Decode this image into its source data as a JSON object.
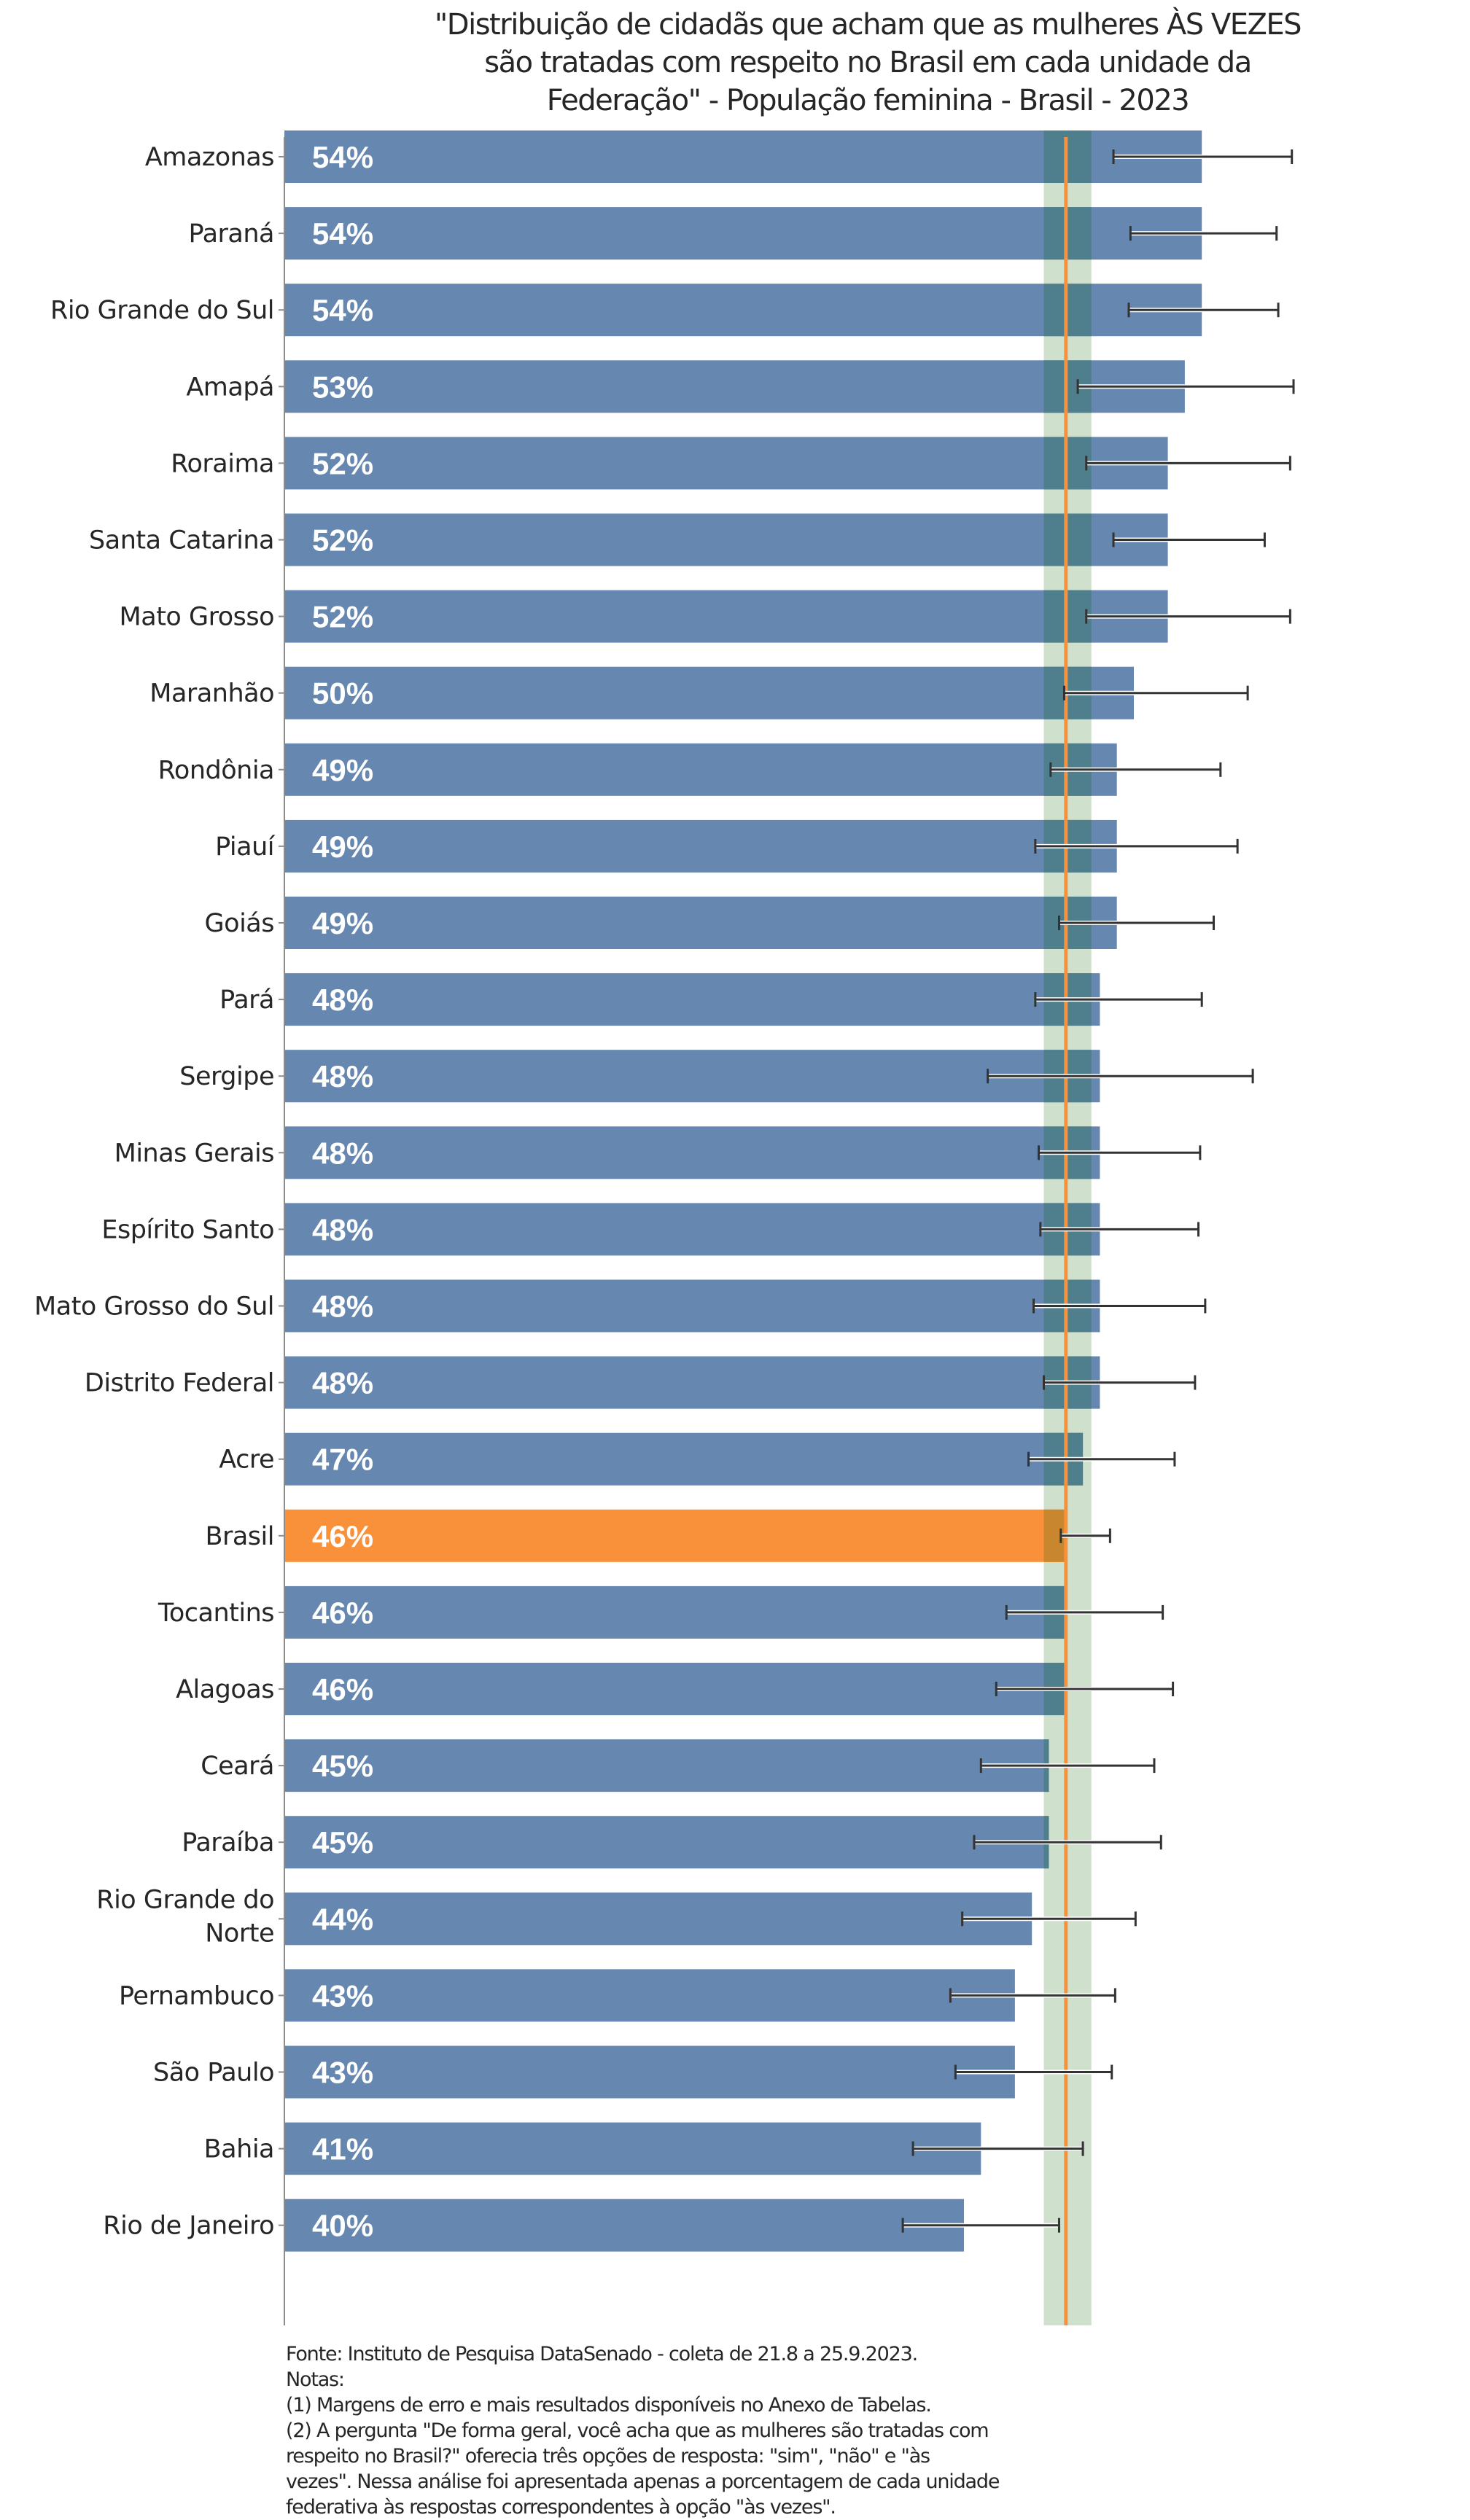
{
  "chart_data": {
    "type": "bar",
    "orientation": "horizontal",
    "title": "\"Distribuição de cidadãs que acham que as mulheres ÀS VEZES são tratadas com respeito no Brasil em cada unidade da Federação\" - População feminina - Brasil - 2023",
    "title_lines": [
      "\"Distribuição de cidadãs que acham que as mulheres ÀS VEZES",
      "são tratadas com respeito no Brasil em cada unidade da",
      "Federação\" - População feminina - Brasil - 2023"
    ],
    "xlabel": "",
    "ylabel": "",
    "xlim": [
      0,
      70
    ],
    "grid": false,
    "legend": "none",
    "unit": "%",
    "categories": [
      "Amazonas",
      "Paraná",
      "Rio Grande do Sul",
      "Amapá",
      "Roraima",
      "Santa Catarina",
      "Mato Grosso",
      "Maranhão",
      "Rondônia",
      "Piauí",
      "Goiás",
      "Pará",
      "Sergipe",
      "Minas Gerais",
      "Espírito Santo",
      "Mato Grosso do Sul",
      "Distrito Federal",
      "Acre",
      "Brasil",
      "Tocantins",
      "Alagoas",
      "Ceará",
      "Paraíba",
      "Rio Grande do Norte",
      "Pernambuco",
      "São Paulo",
      "Bahia",
      "Rio de Janeiro"
    ],
    "category_lines": [
      [
        "Amazonas"
      ],
      [
        "Paraná"
      ],
      [
        "Rio Grande do Sul"
      ],
      [
        "Amapá"
      ],
      [
        "Roraima"
      ],
      [
        "Santa Catarina"
      ],
      [
        "Mato Grosso"
      ],
      [
        "Maranhão"
      ],
      [
        "Rondônia"
      ],
      [
        "Piauí"
      ],
      [
        "Goiás"
      ],
      [
        "Pará"
      ],
      [
        "Sergipe"
      ],
      [
        "Minas Gerais"
      ],
      [
        "Espírito Santo"
      ],
      [
        "Mato Grosso do Sul"
      ],
      [
        "Distrito Federal"
      ],
      [
        "Acre"
      ],
      [
        "Brasil"
      ],
      [
        "Tocantins"
      ],
      [
        "Alagoas"
      ],
      [
        "Ceará"
      ],
      [
        "Paraíba"
      ],
      [
        "Rio Grande do",
        "Norte"
      ],
      [
        "Pernambuco"
      ],
      [
        "São Paulo"
      ],
      [
        "Bahia"
      ],
      [
        "Rio de Janeiro"
      ]
    ],
    "values": [
      54,
      54,
      54,
      53,
      52,
      52,
      52,
      50,
      49,
      49,
      49,
      48,
      48,
      48,
      48,
      48,
      48,
      47,
      46,
      46,
      46,
      45,
      45,
      44,
      43,
      43,
      41,
      40
    ],
    "value_labels": [
      "54%",
      "54%",
      "54%",
      "53%",
      "52%",
      "52%",
      "52%",
      "50%",
      "49%",
      "49%",
      "49%",
      "48%",
      "48%",
      "48%",
      "48%",
      "48%",
      "48%",
      "47%",
      "46%",
      "46%",
      "46%",
      "45%",
      "45%",
      "44%",
      "43%",
      "43%",
      "41%",
      "40%"
    ],
    "error_low": [
      48.8,
      49.8,
      49.7,
      46.7,
      47.2,
      48.8,
      47.2,
      45.9,
      45.1,
      44.2,
      45.6,
      44.2,
      41.4,
      44.4,
      44.5,
      44.1,
      44.7,
      43.8,
      45.7,
      42.5,
      41.9,
      41.0,
      40.6,
      39.9,
      39.2,
      39.5,
      37.0,
      36.4
    ],
    "error_high": [
      59.3,
      58.4,
      58.5,
      59.4,
      59.2,
      57.7,
      59.2,
      56.7,
      55.1,
      56.1,
      54.7,
      54.0,
      57.0,
      53.9,
      53.8,
      54.2,
      53.6,
      52.4,
      48.6,
      51.7,
      52.3,
      51.2,
      51.6,
      50.1,
      48.9,
      48.7,
      47.0,
      45.6
    ],
    "highlight_category": "Brasil",
    "reference_line": {
      "value": 46.0,
      "label": "Brasil"
    },
    "reference_band": {
      "low": 44.7,
      "high": 47.5
    },
    "colors": {
      "bar": "#6688b0",
      "highlight_bar": "#f9913b",
      "reference_line": "#f9913b",
      "reference_band": "#cfe1cd",
      "error_bar": "#333333",
      "value_label": "#ffffff"
    }
  },
  "notes": [
    "Fonte: Instituto de Pesquisa DataSenado - coleta de 21.8 a 25.9.2023.",
    "Notas:",
    "(1) Margens de erro e mais resultados disponíveis no Anexo de Tabelas.",
    "(2) A pergunta \"De forma geral, você acha que as mulheres são tratadas com",
    "respeito no Brasil?\" oferecia três opções de resposta: \"sim\", \"não\" e \"às",
    "vezes\". Nessa análise foi apresentada apenas a porcentagem de cada unidade",
    "federativa às respostas correspondentes à opção \"às vezes\"."
  ]
}
